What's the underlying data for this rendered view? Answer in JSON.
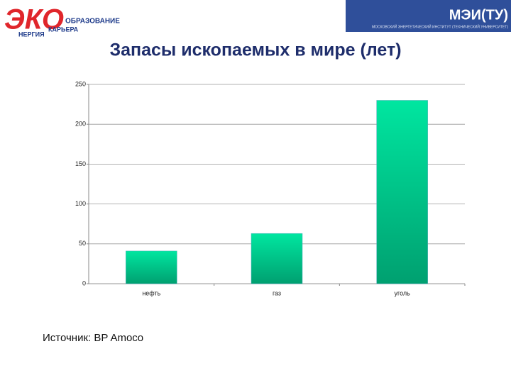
{
  "header": {
    "logo_main": "ЭКО",
    "logo_line1": "ОБРАЗОВАНИЕ",
    "logo_line2": "КАРЬЕРА",
    "logo_line3": "НЕРГИЯ",
    "institute": "МЭИ(ТУ)",
    "institute_full": "МОСКОВСКИЙ ЭНЕРГЕТИЧЕСКИЙ ИНСТИТУТ (ТЕХНИЧЕСКИЙ УНИВЕРСИТЕТ)"
  },
  "chart_data": {
    "type": "bar",
    "title": "Запасы ископаемых в мире (лет)",
    "categories": [
      "нефть",
      "газ",
      "уголь"
    ],
    "values": [
      41,
      63,
      230
    ],
    "color": "#00e6a0",
    "ylim": [
      0,
      250
    ],
    "yticks": [
      0,
      50,
      100,
      150,
      200,
      250
    ],
    "grid": true
  },
  "source": "Источник:  BP Amoco"
}
